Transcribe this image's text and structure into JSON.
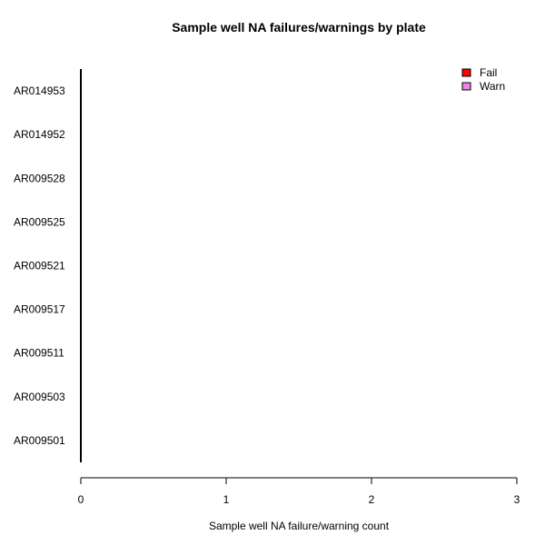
{
  "chart_data": {
    "type": "bar",
    "orientation": "horizontal",
    "stacked": true,
    "title": "Sample well NA failures/warnings by plate",
    "xlabel": "Sample well NA failure/warning count",
    "ylabel": "",
    "categories": [
      "AR014953",
      "AR014952",
      "AR009528",
      "AR009525",
      "AR009521",
      "AR009517",
      "AR009511",
      "AR009503",
      "AR009501"
    ],
    "series": [
      {
        "name": "Fail",
        "color": "#ff0000",
        "values": [
          0,
          0,
          0,
          0,
          0,
          0,
          0,
          0,
          0
        ]
      },
      {
        "name": "Warn",
        "color": "#ee82ee",
        "values": [
          0,
          0,
          0,
          0,
          0,
          0,
          0,
          0,
          0
        ]
      }
    ],
    "xlim": [
      0,
      3
    ],
    "xticks": [
      "0",
      "1",
      "2",
      "3"
    ],
    "legend_position": "top-right",
    "grid": false
  }
}
